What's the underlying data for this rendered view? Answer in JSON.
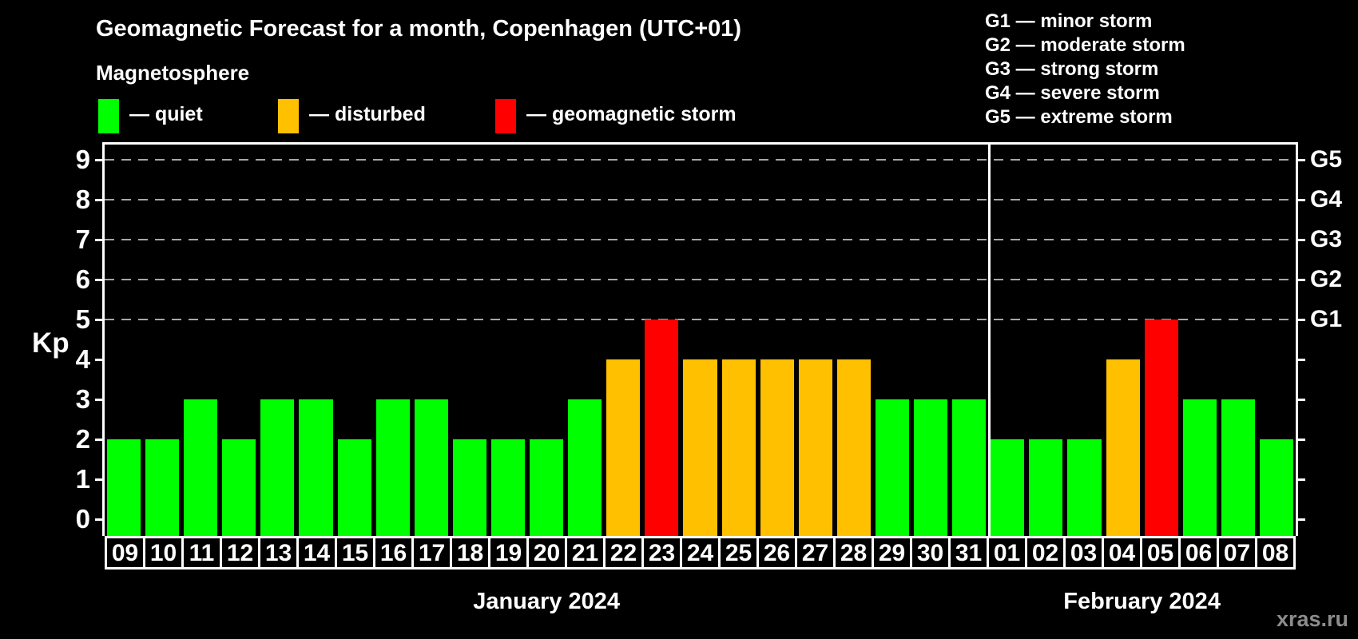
{
  "page": {
    "title": "Geomagnetic Forecast for a month, Copenhagen (UTC+01)",
    "watermark": "xras.ru"
  },
  "legend": {
    "title": "Magnetosphere",
    "items": [
      {
        "name": "quiet",
        "label": "— quiet"
      },
      {
        "name": "disturbed",
        "label": "— disturbed"
      },
      {
        "name": "storm",
        "label": "— geomagnetic storm"
      }
    ]
  },
  "storm_scale_legend": {
    "items": [
      "G1 — minor storm",
      "G2 — moderate storm",
      "G3 — strong storm",
      "G4 — severe storm",
      "G5 — extreme storm"
    ]
  },
  "colors": {
    "quiet": "#00ff00",
    "disturbed": "#ffc000",
    "storm": "#ff0000",
    "grid": "#a6a6a6",
    "axis": "#ffffff",
    "text": "#ffffff",
    "watermark": "#8c8c8c",
    "background": "#000000"
  },
  "chart_data": {
    "type": "bar",
    "title": "Geomagnetic Forecast for a month, Copenhagen (UTC+01)",
    "ylabel": "Kp",
    "ylim": [
      0,
      9.4
    ],
    "yticks": [
      0,
      1,
      2,
      3,
      4,
      5,
      6,
      7,
      8,
      9
    ],
    "grid_levels": [
      5,
      6,
      7,
      8,
      9
    ],
    "grid": "dashed horizontal lines at Kp 5 to 9",
    "legend_position": "top-left and top-right",
    "right_axis": [
      {
        "label": "G1",
        "kp": 5
      },
      {
        "label": "G2",
        "kp": 6
      },
      {
        "label": "G3",
        "kp": 7
      },
      {
        "label": "G4",
        "kp": 8
      },
      {
        "label": "G5",
        "kp": 9
      }
    ],
    "months": [
      {
        "label": "January 2024",
        "bars": [
          {
            "day": "09",
            "kp": 2,
            "category": "quiet"
          },
          {
            "day": "10",
            "kp": 2,
            "category": "quiet"
          },
          {
            "day": "11",
            "kp": 3,
            "category": "quiet"
          },
          {
            "day": "12",
            "kp": 2,
            "category": "quiet"
          },
          {
            "day": "13",
            "kp": 3,
            "category": "quiet"
          },
          {
            "day": "14",
            "kp": 3,
            "category": "quiet"
          },
          {
            "day": "15",
            "kp": 2,
            "category": "quiet"
          },
          {
            "day": "16",
            "kp": 3,
            "category": "quiet"
          },
          {
            "day": "17",
            "kp": 3,
            "category": "quiet"
          },
          {
            "day": "18",
            "kp": 2,
            "category": "quiet"
          },
          {
            "day": "19",
            "kp": 2,
            "category": "quiet"
          },
          {
            "day": "20",
            "kp": 2,
            "category": "quiet"
          },
          {
            "day": "21",
            "kp": 3,
            "category": "quiet"
          },
          {
            "day": "22",
            "kp": 4,
            "category": "disturbed"
          },
          {
            "day": "23",
            "kp": 5,
            "category": "storm"
          },
          {
            "day": "24",
            "kp": 4,
            "category": "disturbed"
          },
          {
            "day": "25",
            "kp": 4,
            "category": "disturbed"
          },
          {
            "day": "26",
            "kp": 4,
            "category": "disturbed"
          },
          {
            "day": "27",
            "kp": 4,
            "category": "disturbed"
          },
          {
            "day": "28",
            "kp": 4,
            "category": "disturbed"
          },
          {
            "day": "29",
            "kp": 3,
            "category": "quiet"
          },
          {
            "day": "30",
            "kp": 3,
            "category": "quiet"
          },
          {
            "day": "31",
            "kp": 3,
            "category": "quiet"
          }
        ]
      },
      {
        "label": "February 2024",
        "bars": [
          {
            "day": "01",
            "kp": 2,
            "category": "quiet"
          },
          {
            "day": "02",
            "kp": 2,
            "category": "quiet"
          },
          {
            "day": "03",
            "kp": 2,
            "category": "quiet"
          },
          {
            "day": "04",
            "kp": 4,
            "category": "disturbed"
          },
          {
            "day": "05",
            "kp": 5,
            "category": "storm"
          },
          {
            "day": "06",
            "kp": 3,
            "category": "quiet"
          },
          {
            "day": "07",
            "kp": 3,
            "category": "quiet"
          },
          {
            "day": "08",
            "kp": 2,
            "category": "quiet"
          }
        ]
      }
    ]
  }
}
